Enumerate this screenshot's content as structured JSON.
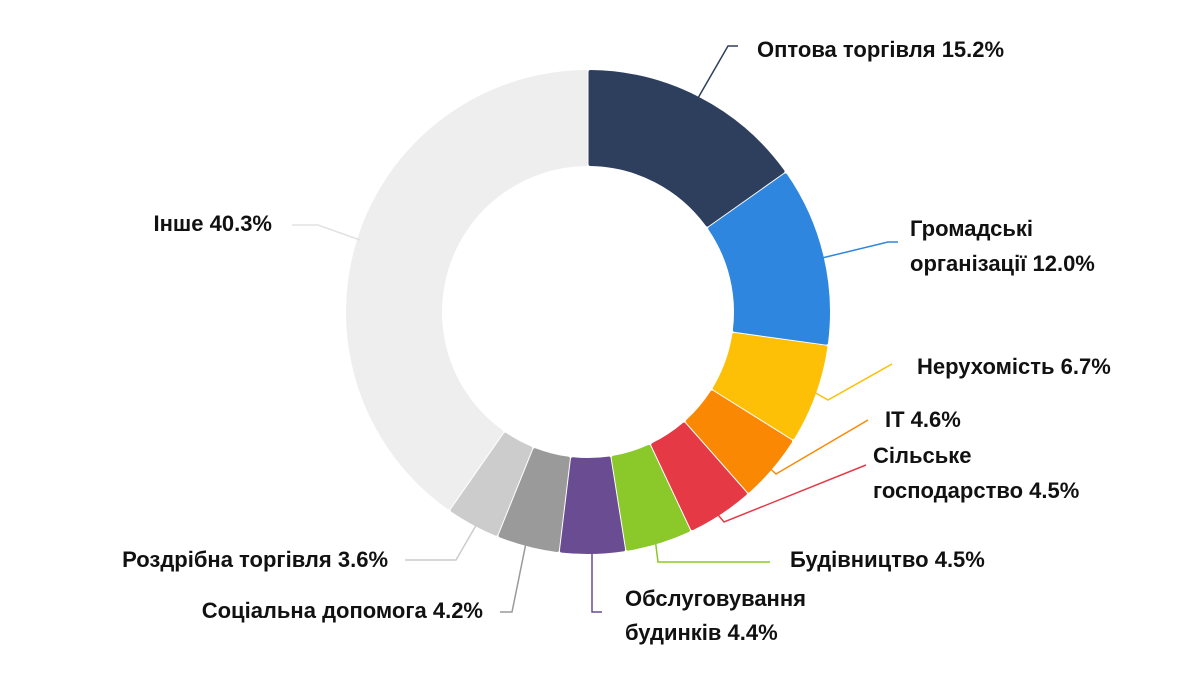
{
  "chart_data": {
    "type": "pie",
    "variant": "donut",
    "unit": "%",
    "title": "",
    "legend": "none",
    "slices": [
      {
        "name": "Оптова торгівля",
        "value": 15.2,
        "label_lines": [
          "Оптова торгівля 15.2%"
        ],
        "color": "#2e3f5e"
      },
      {
        "name": "Громадські організації",
        "value": 12.0,
        "label_lines": [
          "Громадські",
          "організації 12.0%"
        ],
        "color": "#2e86de"
      },
      {
        "name": "Нерухомість",
        "value": 6.7,
        "label_lines": [
          "Нерухомість 6.7%"
        ],
        "color": "#fdc006"
      },
      {
        "name": "IT",
        "value": 4.6,
        "label_lines": [
          "IT 4.6%"
        ],
        "color": "#fb8802"
      },
      {
        "name": "Сільське господарство",
        "value": 4.5,
        "label_lines": [
          "Сільське",
          "господарство 4.5%"
        ],
        "color": "#e53946"
      },
      {
        "name": "Будівництво",
        "value": 4.5,
        "label_lines": [
          "Будівництво 4.5%"
        ],
        "color": "#8bc82a"
      },
      {
        "name": "Обслуговування будинків",
        "value": 4.4,
        "label_lines": [
          "Обслуговування",
          "будинків 4.4%"
        ],
        "color": "#6a4c93"
      },
      {
        "name": "Соціальна допомога",
        "value": 4.2,
        "label_lines": [
          "Соціальна допомога 4.2%"
        ],
        "color": "#9a9a9a"
      },
      {
        "name": "Роздрібна торгівля",
        "value": 3.6,
        "label_lines": [
          "Роздрібна торгівля 3.6%"
        ],
        "color": "#cccccc"
      },
      {
        "name": "Інше",
        "value": 40.3,
        "label_lines": [
          "Інше 40.3%"
        ],
        "color": "#eeeeee"
      }
    ]
  }
}
